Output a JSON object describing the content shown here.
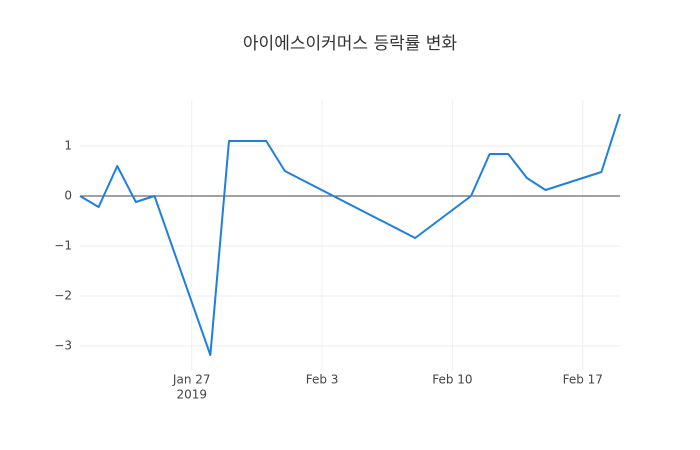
{
  "chart_data": {
    "type": "line",
    "title": "아이에스이커머스 등락률 변화",
    "x": [
      "2019-01-21",
      "2019-01-22",
      "2019-01-23",
      "2019-01-24",
      "2019-01-25",
      "2019-01-28",
      "2019-01-29",
      "2019-01-30",
      "2019-01-31",
      "2019-02-01",
      "2019-02-08",
      "2019-02-11",
      "2019-02-12",
      "2019-02-13",
      "2019-02-14",
      "2019-02-15",
      "2019-02-18",
      "2019-02-19"
    ],
    "series": [
      {
        "color": "#1f7fe0",
        "values": [
          0,
          -0.22,
          0.6,
          -0.12,
          0,
          -3.18,
          1.1,
          1.1,
          1.1,
          0.5,
          -0.84,
          0,
          0.84,
          0.84,
          0.36,
          0.12,
          0.48,
          1.64
        ]
      }
    ],
    "xlim": [
      "2019-01-21",
      "2019-02-19"
    ],
    "xticks": [
      {
        "value": "2019-01-27",
        "label": [
          "Jan 27",
          "2019"
        ]
      },
      {
        "value": "2019-02-03",
        "label": [
          "Feb 3"
        ]
      },
      {
        "value": "2019-02-10",
        "label": [
          "Feb 10"
        ]
      },
      {
        "value": "2019-02-17",
        "label": [
          "Feb 17"
        ]
      }
    ],
    "ylim": [
      -3.48,
      1.92
    ],
    "yticks": [
      {
        "value": -3,
        "label": "−3"
      },
      {
        "value": -2,
        "label": "−2"
      },
      {
        "value": -1,
        "label": "−1"
      },
      0,
      1
    ],
    "grid": true,
    "zeroline": true
  }
}
